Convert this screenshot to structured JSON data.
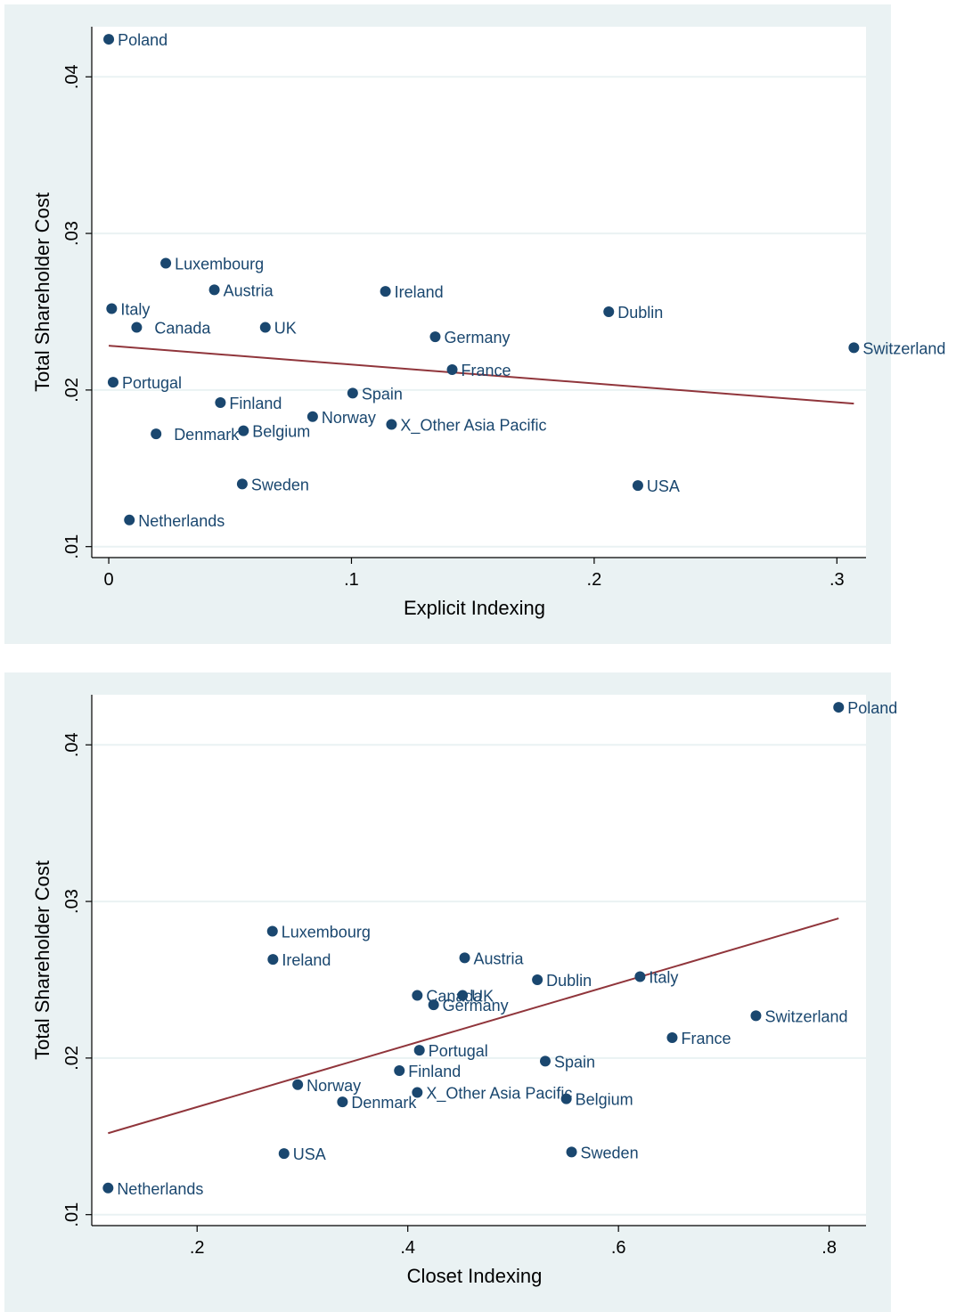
{
  "chart_data": [
    {
      "type": "scatter",
      "ylabel": "Total Shareholder Cost",
      "xlabel": "Explicit Indexing",
      "xlim": [
        -0.007,
        0.312
      ],
      "ylim": [
        0.0093,
        0.0432
      ],
      "xticks": [
        0,
        0.1,
        0.2,
        0.3
      ],
      "xtick_labels": [
        "0",
        ".1",
        ".2",
        ".3"
      ],
      "yticks": [
        0.01,
        0.02,
        0.03,
        0.04
      ],
      "ytick_labels": [
        ".01",
        ".02",
        ".03",
        ".04"
      ],
      "grid": "horizontal",
      "colors": {
        "marker": "#1a476f",
        "fit_line": "#90353b",
        "frame_bg": "#eaf2f3",
        "plot_bg": "#ffffff",
        "grid": "#eaf2f3"
      },
      "points": [
        {
          "label": "Poland",
          "x": 0.0,
          "y": 0.0424
        },
        {
          "label": "Luxembourg",
          "x": 0.0235,
          "y": 0.0281
        },
        {
          "label": "Austria",
          "x": 0.0435,
          "y": 0.0264
        },
        {
          "label": "Ireland",
          "x": 0.114,
          "y": 0.0263
        },
        {
          "label": "Italy",
          "x": 0.0012,
          "y": 0.0252
        },
        {
          "label": "Dublin",
          "x": 0.206,
          "y": 0.025
        },
        {
          "label": "Canada",
          "x": 0.0115,
          "y": 0.024
        },
        {
          "label": "UK",
          "x": 0.0645,
          "y": 0.024
        },
        {
          "label": "Germany",
          "x": 0.1345,
          "y": 0.0234
        },
        {
          "label": "Switzerland",
          "x": 0.307,
          "y": 0.0227
        },
        {
          "label": "France",
          "x": 0.1415,
          "y": 0.0213
        },
        {
          "label": "Portugal",
          "x": 0.0018,
          "y": 0.0205
        },
        {
          "label": "Spain",
          "x": 0.1005,
          "y": 0.0198
        },
        {
          "label": "Finland",
          "x": 0.046,
          "y": 0.0192
        },
        {
          "label": "Norway",
          "x": 0.084,
          "y": 0.0183
        },
        {
          "label": "X_Other Asia Pacific",
          "x": 0.1165,
          "y": 0.0178
        },
        {
          "label": "Denmark",
          "x": 0.0195,
          "y": 0.0172
        },
        {
          "label": "Belgium",
          "x": 0.0555,
          "y": 0.0174
        },
        {
          "label": "Sweden",
          "x": 0.055,
          "y": 0.014
        },
        {
          "label": "USA",
          "x": 0.218,
          "y": 0.0139
        },
        {
          "label": "Netherlands",
          "x": 0.0085,
          "y": 0.0117
        }
      ],
      "fit_line": {
        "x": [
          0.0,
          0.307
        ],
        "y": [
          0.02283,
          0.01913
        ]
      }
    },
    {
      "type": "scatter",
      "ylabel": "Total Shareholder Cost",
      "xlabel": "Closet Indexing",
      "xlim": [
        0.1,
        0.835
      ],
      "ylim": [
        0.0093,
        0.0432
      ],
      "xticks": [
        0.2,
        0.4,
        0.6,
        0.8
      ],
      "xtick_labels": [
        ".2",
        ".4",
        ".6",
        ".8"
      ],
      "yticks": [
        0.01,
        0.02,
        0.03,
        0.04
      ],
      "ytick_labels": [
        ".01",
        ".02",
        ".03",
        ".04"
      ],
      "grid": "horizontal",
      "colors": {
        "marker": "#1a476f",
        "fit_line": "#90353b",
        "frame_bg": "#eaf2f3",
        "plot_bg": "#ffffff",
        "grid": "#eaf2f3"
      },
      "points": [
        {
          "label": "Poland",
          "x": 0.809,
          "y": 0.0424
        },
        {
          "label": "Luxembourg",
          "x": 0.2715,
          "y": 0.0281
        },
        {
          "label": "Ireland",
          "x": 0.272,
          "y": 0.0263
        },
        {
          "label": "Austria",
          "x": 0.454,
          "y": 0.0264
        },
        {
          "label": "Dublin",
          "x": 0.523,
          "y": 0.025
        },
        {
          "label": "Italy",
          "x": 0.6205,
          "y": 0.0252
        },
        {
          "label": "Canada",
          "x": 0.409,
          "y": 0.024
        },
        {
          "label": "UK",
          "x": 0.452,
          "y": 0.024
        },
        {
          "label": "Germany",
          "x": 0.4245,
          "y": 0.0234
        },
        {
          "label": "Switzerland",
          "x": 0.7305,
          "y": 0.0227
        },
        {
          "label": "France",
          "x": 0.651,
          "y": 0.0213
        },
        {
          "label": "Portugal",
          "x": 0.411,
          "y": 0.0205
        },
        {
          "label": "Spain",
          "x": 0.5305,
          "y": 0.0198
        },
        {
          "label": "Finland",
          "x": 0.392,
          "y": 0.0192
        },
        {
          "label": "Norway",
          "x": 0.2955,
          "y": 0.0183
        },
        {
          "label": "X_Other Asia Pacific",
          "x": 0.409,
          "y": 0.0178
        },
        {
          "label": "Belgium",
          "x": 0.5505,
          "y": 0.0174
        },
        {
          "label": "Denmark",
          "x": 0.338,
          "y": 0.0172
        },
        {
          "label": "Sweden",
          "x": 0.5555,
          "y": 0.014
        },
        {
          "label": "USA",
          "x": 0.2825,
          "y": 0.0139
        },
        {
          "label": "Netherlands",
          "x": 0.1155,
          "y": 0.0117
        }
      ],
      "fit_line": {
        "x": [
          0.1155,
          0.809
        ],
        "y": [
          0.0152,
          0.02892
        ]
      }
    }
  ]
}
